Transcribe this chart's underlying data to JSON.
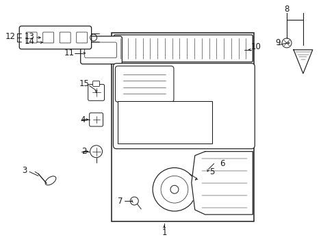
{
  "bg_color": "#ffffff",
  "lc": "#1a1a1a",
  "fs": 8.5,
  "figw": 4.89,
  "figh": 3.6,
  "dpi": 100
}
